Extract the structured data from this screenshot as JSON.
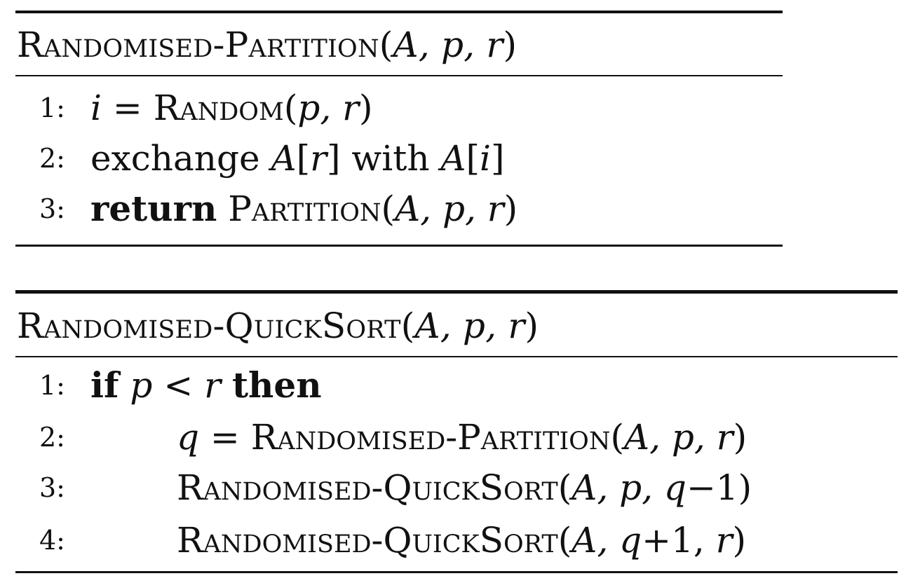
{
  "algorithm1": {
    "title": {
      "name": "Randomised-Partition",
      "open": "(",
      "args": "A, p, r",
      "close": ")"
    },
    "lines": [
      {
        "number": "1:",
        "part1": "i",
        "part2": " = ",
        "part3": "Random",
        "part4": "(",
        "part5": "p, r",
        "part6": ")"
      },
      {
        "number": "2:",
        "part1": "exchange ",
        "part2": "A",
        "part3": "[",
        "part4": "r",
        "part5": "] with ",
        "part6": "A",
        "part7": "[",
        "part8": "i",
        "part9": "]"
      },
      {
        "number": "3:",
        "part1": "return",
        "part2": "  ",
        "part3": "Partition",
        "part4": "(",
        "part5": "A, p, r",
        "part6": ")"
      }
    ]
  },
  "algorithm2": {
    "title": {
      "name": "Randomised-QuickSort",
      "open": "(",
      "args": "A, p, r",
      "close": ")"
    },
    "lines": [
      {
        "number": "1:",
        "part1": "if",
        "part2": " ",
        "part3": "p",
        "part4": " < ",
        "part5": "r",
        "part6": " ",
        "part7": "then"
      },
      {
        "number": "2:",
        "part1": "q",
        "part2": " = ",
        "part3": "Randomised-Partition",
        "part4": "(",
        "part5": "A, p, r",
        "part6": ")"
      },
      {
        "number": "3:",
        "part1": "Randomised-QuickSort",
        "part2": "(",
        "part3": "A, p, q",
        "part4": "−1",
        "part5": ")"
      },
      {
        "number": "4:",
        "part1": "Randomised-QuickSort",
        "part2": "(",
        "part3": "A, q",
        "part4": "+1, ",
        "part5": "r",
        "part6": ")"
      }
    ]
  }
}
